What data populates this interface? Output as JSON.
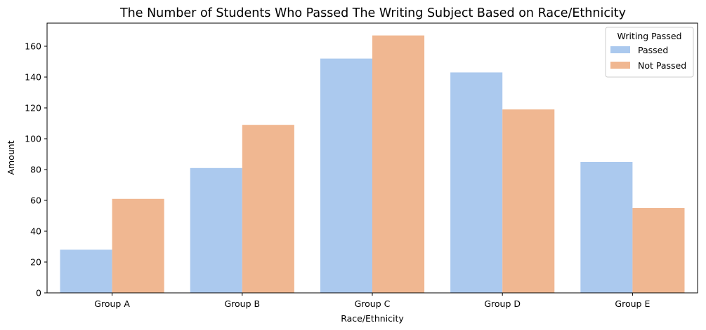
{
  "chart_data": {
    "type": "bar",
    "title": "The Number of Students Who Passed The Writing Subject Based on Race/Ethnicity",
    "xlabel": "Race/Ethnicity",
    "ylabel": "Amount",
    "categories": [
      "Group A",
      "Group B",
      "Group C",
      "Group D",
      "Group E"
    ],
    "series": [
      {
        "name": "Passed",
        "values": [
          28,
          81,
          152,
          143,
          85
        ],
        "color": "#abc9ee"
      },
      {
        "name": "Not Passed",
        "values": [
          61,
          109,
          167,
          119,
          55
        ],
        "color": "#f0b791"
      }
    ],
    "ylim": [
      0,
      175
    ],
    "yticks": [
      0,
      20,
      40,
      60,
      80,
      100,
      120,
      140,
      160
    ],
    "grid": false,
    "legend": {
      "title": "Writing Passed",
      "placement": "top-right"
    }
  }
}
